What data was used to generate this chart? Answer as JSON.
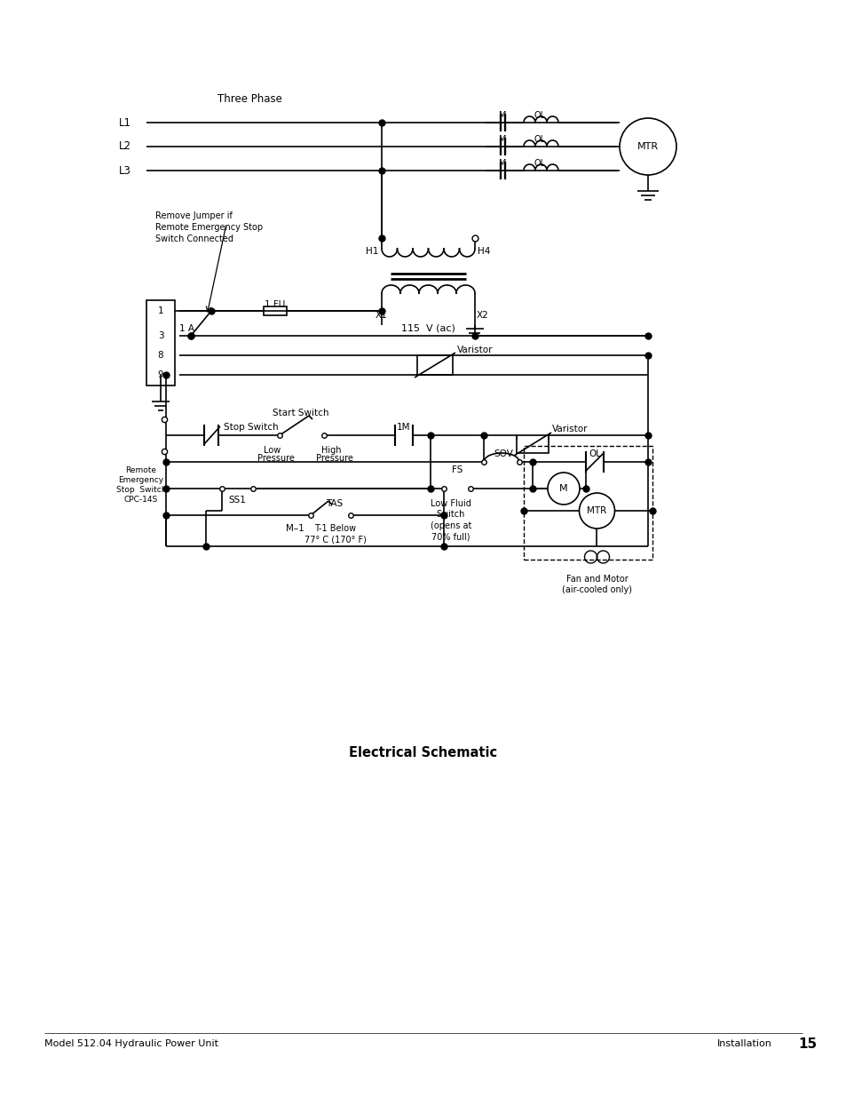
{
  "bg_color": "#ffffff",
  "line_color": "#000000",
  "title": "Electrical Schematic",
  "footer_left": "Model 512.04 Hydraulic Power Unit",
  "footer_right": "Installation",
  "footer_page": "15"
}
